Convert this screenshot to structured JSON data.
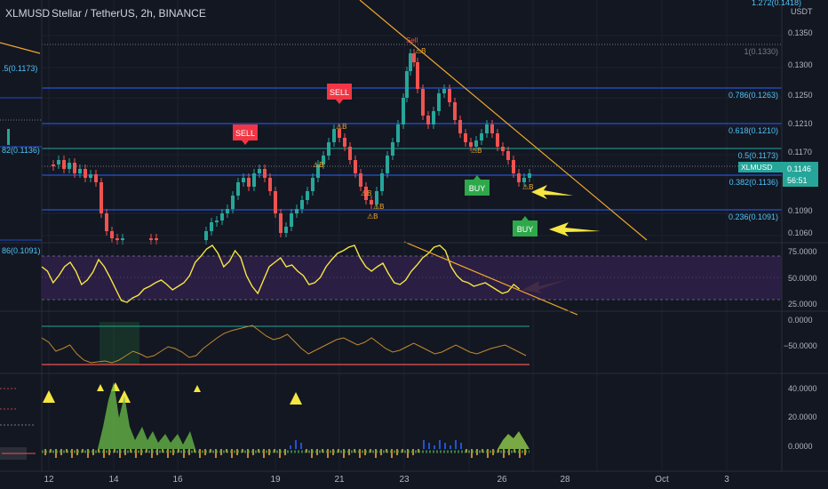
{
  "header": {
    "symbol": "XLMUSD",
    "description": "Stellar / TetherUS, 2h, BINANCE",
    "currency": "USDT"
  },
  "price_axis": {
    "ticks": [
      "1.272(0.1418)",
      "0.1350",
      "0.1300",
      "0.1250",
      "0.1210",
      "0.1170",
      "0.1090",
      "0.1060"
    ],
    "top_value": "1.272(0.1418)"
  },
  "current_price": {
    "symbol": "XLMUSD",
    "price": "0.1146",
    "countdown": "56:51"
  },
  "fib_levels": [
    {
      "label": "1(0.1330)",
      "price": 0.133
    },
    {
      "label": "0.786(0.1263)",
      "price": 0.1263
    },
    {
      "label": "0.618(0.1210)",
      "price": 0.121
    },
    {
      "label": "0.5(0.1173)",
      "price": 0.1173
    },
    {
      "label": "0.382(0.1136)",
      "price": 0.1136
    },
    {
      "label": "0.236(0.1091)",
      "price": 0.1091
    }
  ],
  "left_partial_labels": [
    ".5(0.1173)",
    "82(0.1136)",
    "86(0.1091)"
  ],
  "signals": [
    {
      "type": "SELL",
      "label": "SELL"
    },
    {
      "type": "SELL",
      "label": "SELL"
    },
    {
      "type": "BUY",
      "label": "BUY"
    },
    {
      "type": "BUY",
      "label": "BUY"
    }
  ],
  "signal_glyphs": [
    "⚠B",
    "⚠S",
    "Sell"
  ],
  "rsi_axis": [
    "75.0000",
    "50.0000",
    "25.0000"
  ],
  "osc_axis": [
    "0.0000",
    "−50.0000"
  ],
  "vol_axis": [
    "40.0000",
    "20.0000",
    "0.0000"
  ],
  "time_axis": [
    "12",
    "14",
    "16",
    "19",
    "21",
    "23",
    "26",
    "28",
    "Oct",
    "3"
  ],
  "colors": {
    "background": "#131722",
    "up": "#26a69a",
    "down": "#ef5350",
    "fib_line": "#2962ff",
    "trendline": "#f0a62d",
    "rsi_line": "#f5e642",
    "rsi_band": "#2e1f47",
    "arrow": "#f5e642",
    "buy": "#2ea84a",
    "sell": "#f23645"
  }
}
